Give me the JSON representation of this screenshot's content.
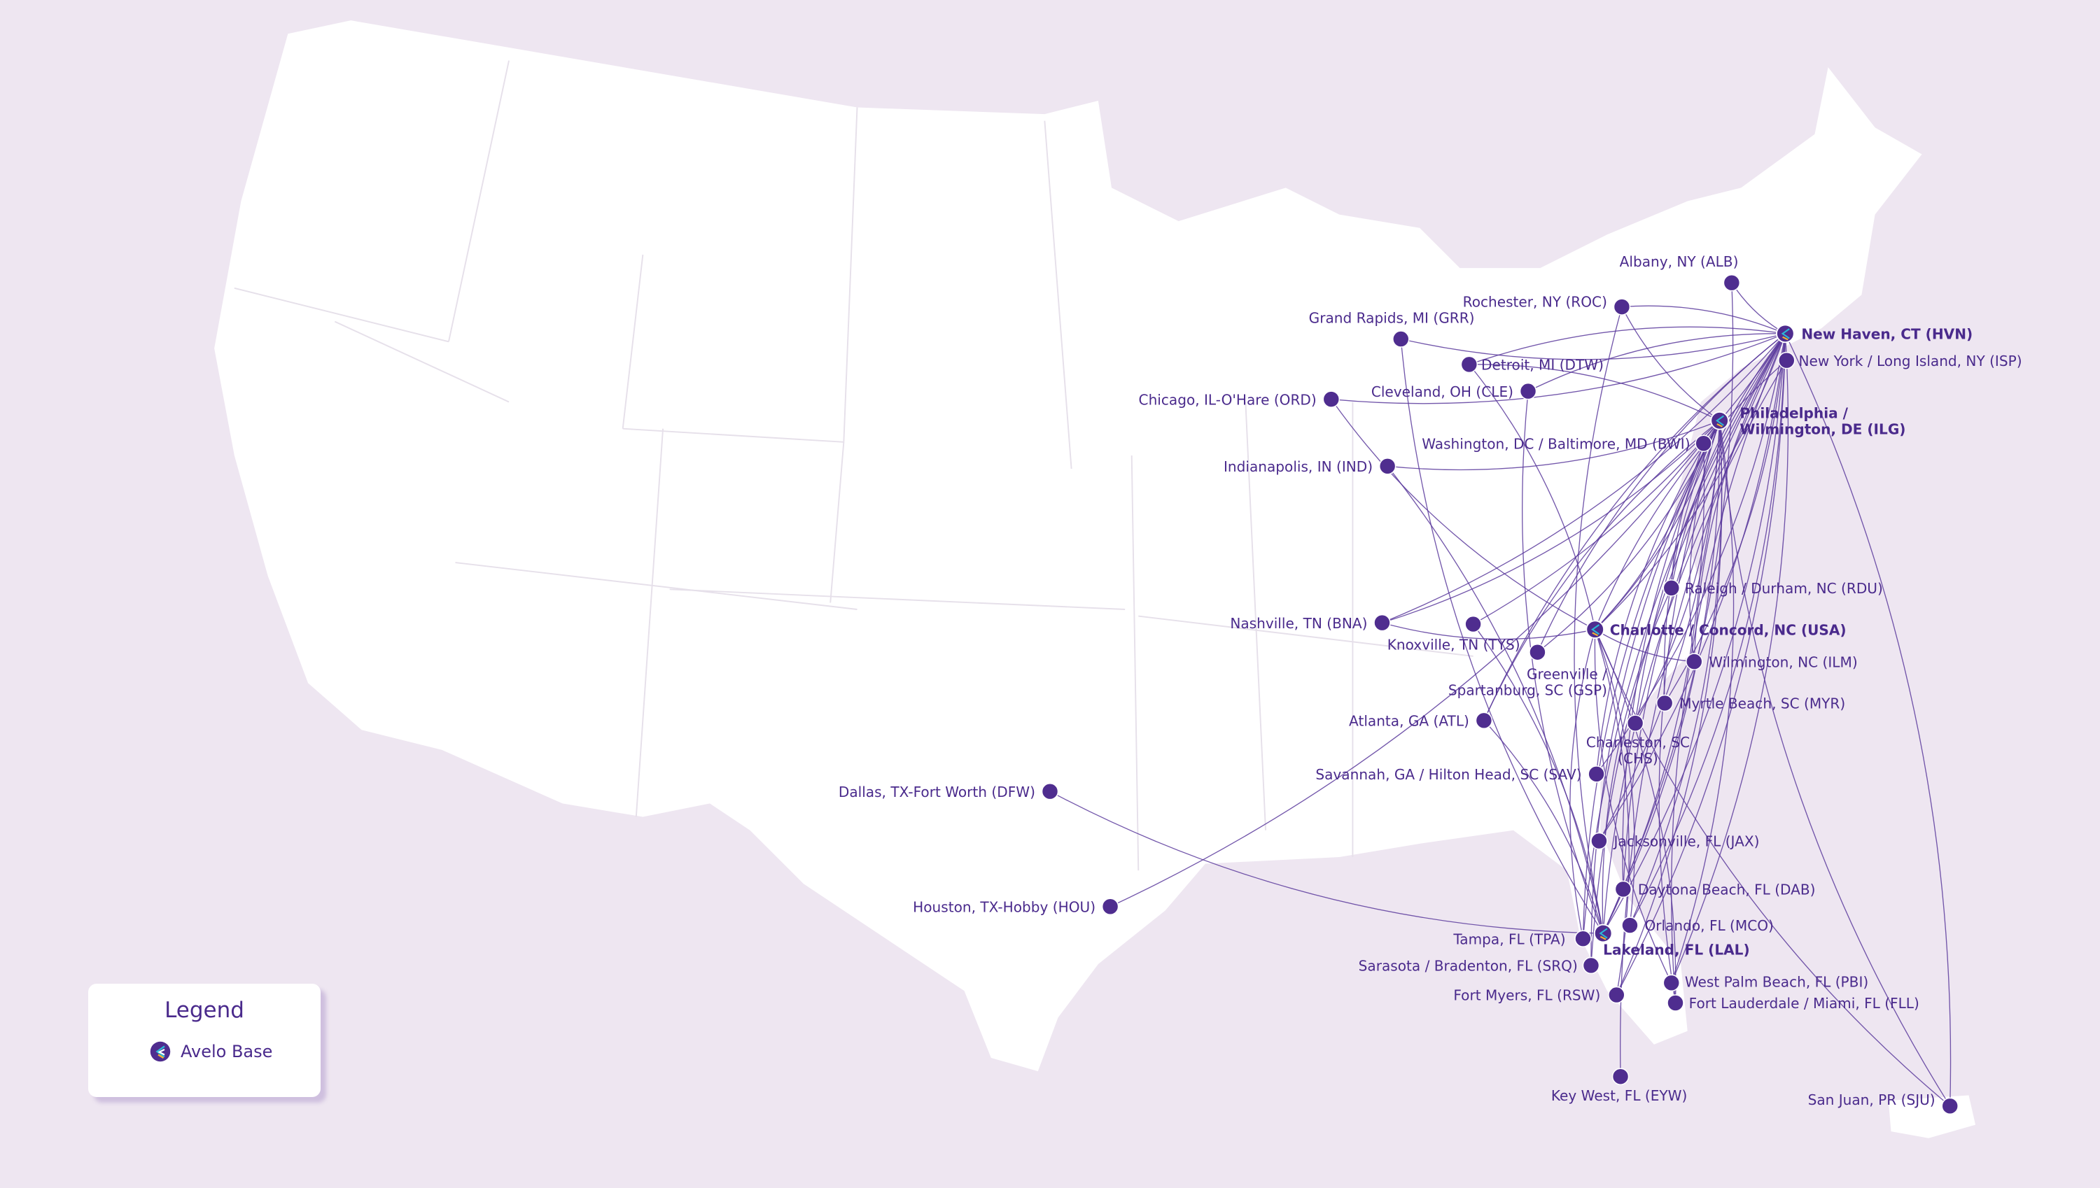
{
  "colors": {
    "background": "#eee6f1",
    "land": "#ffffff",
    "accent": "#4f2d8f",
    "route": "#5b3a9c",
    "logo_cyan": "#2bb8d6",
    "logo_yellow": "#f2b632"
  },
  "legend": {
    "title": "Legend",
    "items": [
      {
        "icon": "avelo-base-icon",
        "label": "Avelo Base"
      }
    ]
  },
  "airports": [
    {
      "code": "HVN",
      "label": "New Haven, CT (HVN)",
      "base": true
    },
    {
      "code": "ISP",
      "label": "New York / Long Island, NY (ISP)"
    },
    {
      "code": "ILG",
      "label": [
        "Philadelphia /",
        "Wilmington, DE (ILG)"
      ],
      "base": true
    },
    {
      "code": "BWI",
      "label": "Washington, DC / Baltimore, MD (BWI)"
    },
    {
      "code": "ALB",
      "label": "Albany, NY (ALB)"
    },
    {
      "code": "ROC",
      "label": "Rochester, NY (ROC)"
    },
    {
      "code": "GRR",
      "label": "Grand Rapids, MI (GRR)"
    },
    {
      "code": "DTW",
      "label": "Detroit, MI (DTW)"
    },
    {
      "code": "CLE",
      "label": "Cleveland, OH (CLE)"
    },
    {
      "code": "ORD",
      "label": "Chicago, IL-O'Hare (ORD)"
    },
    {
      "code": "IND",
      "label": "Indianapolis, IN (IND)"
    },
    {
      "code": "RDU",
      "label": "Raleigh / Durham, NC (RDU)"
    },
    {
      "code": "USA",
      "label": "Charlotte / Concord, NC (USA)",
      "base": true
    },
    {
      "code": "ILM",
      "label": "Wilmington, NC (ILM)"
    },
    {
      "code": "BNA",
      "label": "Nashville, TN (BNA)"
    },
    {
      "code": "TYS",
      "label": "Knoxville, TN (TYS)"
    },
    {
      "code": "GSP",
      "label": [
        "Greenville /",
        "Spartanburg, SC (GSP)"
      ]
    },
    {
      "code": "MYR",
      "label": "Myrtle Beach, SC (MYR)"
    },
    {
      "code": "CHS",
      "label": [
        "Charleston, SC",
        "(CHS)"
      ]
    },
    {
      "code": "ATL",
      "label": "Atlanta, GA (ATL)"
    },
    {
      "code": "SAV",
      "label": "Savannah, GA / Hilton Head, SC (SAV)"
    },
    {
      "code": "DFW",
      "label": "Dallas, TX-Fort Worth (DFW)"
    },
    {
      "code": "JAX",
      "label": "Jacksonville, FL (JAX)"
    },
    {
      "code": "DAB",
      "label": "Daytona Beach, FL (DAB)"
    },
    {
      "code": "HOU",
      "label": "Houston, TX-Hobby (HOU)"
    },
    {
      "code": "MCO",
      "label": "Orlando, FL (MCO)"
    },
    {
      "code": "TPA",
      "label": "Tampa, FL (TPA)"
    },
    {
      "code": "LAL",
      "label": "Lakeland, FL (LAL)",
      "base": true
    },
    {
      "code": "SRQ",
      "label": "Sarasota / Bradenton, FL (SRQ)"
    },
    {
      "code": "PBI",
      "label": "West Palm Beach, FL (PBI)"
    },
    {
      "code": "FLL",
      "label": "Fort Lauderdale / Miami, FL (FLL)"
    },
    {
      "code": "RSW",
      "label": "Fort Myers, FL (RSW)"
    },
    {
      "code": "EYW",
      "label": "Key West, FL (EYW)"
    },
    {
      "code": "SJU",
      "label": "San Juan, PR (SJU)"
    }
  ],
  "routes": {
    "HVN": [
      "ALB",
      "ROC",
      "GRR",
      "DTW",
      "ORD",
      "CLE",
      "BNA",
      "RDU",
      "USA",
      "ILM",
      "MYR",
      "CHS",
      "SAV",
      "ATL",
      "JAX",
      "DAB",
      "MCO",
      "TPA",
      "LAL",
      "SRQ",
      "PBI",
      "FLL",
      "RSW",
      "EYW",
      "SJU",
      "GSP",
      "TYS"
    ],
    "ILG": [
      "ROC",
      "DTW",
      "IND",
      "ATL",
      "BNA",
      "RDU",
      "USA",
      "MYR",
      "CHS",
      "SAV",
      "JAX",
      "DAB",
      "MCO",
      "TPA",
      "LAL",
      "SRQ",
      "PBI",
      "FLL",
      "RSW",
      "SJU",
      "GSP",
      "ILM",
      "HOU"
    ],
    "USA": [
      "ORD",
      "DTW",
      "BNA",
      "ILM",
      "MCO",
      "TPA",
      "FLL",
      "PBI",
      "RSW",
      "SJU",
      "ISP",
      "BWI"
    ],
    "LAL": [
      "ISP",
      "BWI",
      "GRR",
      "IND",
      "ROC",
      "ATL",
      "CLE",
      "ALB",
      "RDU",
      "TYS",
      "DFW"
    ]
  }
}
